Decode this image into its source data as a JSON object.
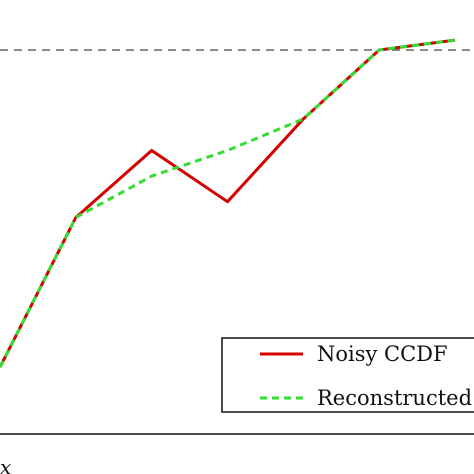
{
  "chart_data": {
    "type": "line",
    "title": "",
    "xlabel": "x",
    "ylabel": "",
    "x": [
      0,
      1,
      2,
      3,
      4,
      5,
      6
    ],
    "xlim": [
      0,
      6
    ],
    "ylim": [
      0,
      1
    ],
    "reference_line": {
      "y": 1.0,
      "style": "dashed",
      "color": "#444444"
    },
    "series": [
      {
        "name": "Noisy CCDF",
        "color": "#d40000",
        "style": "solid",
        "values": [
          0.195,
          0.575,
          0.745,
          0.615,
          0.825,
          1.0,
          1.025
        ]
      },
      {
        "name": "Reconstructed",
        "color": "#33dd33",
        "style": "dashed",
        "values": [
          0.195,
          0.575,
          0.68,
          0.745,
          0.825,
          1.0,
          1.025
        ]
      }
    ],
    "legend": {
      "placement": "bottom-right"
    },
    "grid": false
  }
}
